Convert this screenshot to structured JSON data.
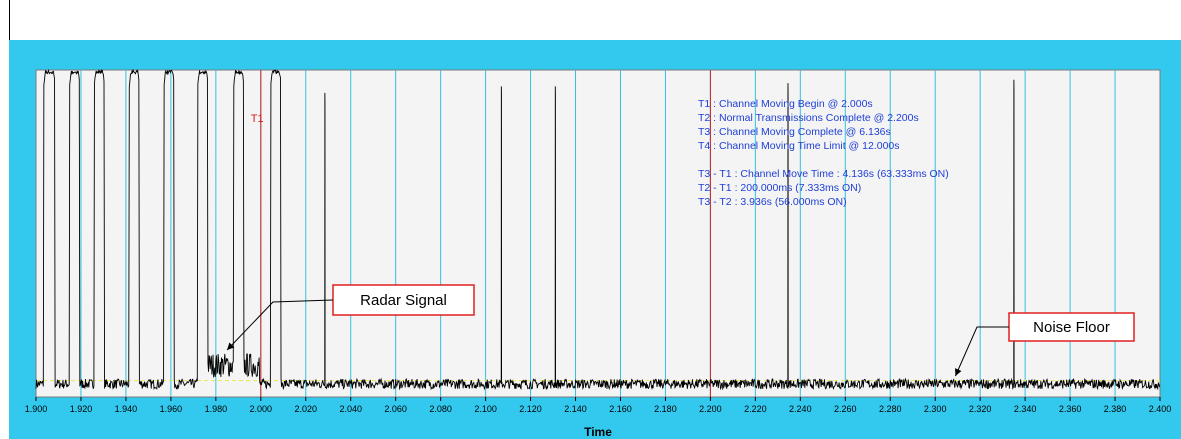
{
  "chart_data": {
    "type": "line",
    "title": "",
    "xlabel": "Time",
    "ylabel": "",
    "xlim": [
      1.9,
      2.4
    ],
    "ylim": [
      0,
      1
    ],
    "grid": true,
    "x_ticks": [
      "1.900",
      "1.920",
      "1.940",
      "1.960",
      "1.980",
      "2.000",
      "2.020",
      "2.040",
      "2.060",
      "2.080",
      "2.100",
      "2.120",
      "2.140",
      "2.160",
      "2.180",
      "2.200",
      "2.220",
      "2.240",
      "2.260",
      "2.280",
      "2.300",
      "2.320",
      "2.340",
      "2.360",
      "2.380",
      "2.400"
    ],
    "noise_floor_level": 0.04,
    "threshold_level": 0.05,
    "bursts": [
      {
        "start": 1.9035,
        "end": 1.9085,
        "level": 1.0
      },
      {
        "start": 1.915,
        "end": 1.9195,
        "level": 1.0
      },
      {
        "start": 1.926,
        "end": 1.9305,
        "level": 1.0
      },
      {
        "start": 1.9415,
        "end": 1.946,
        "level": 1.0
      },
      {
        "start": 1.957,
        "end": 1.9615,
        "level": 1.0
      },
      {
        "start": 1.972,
        "end": 1.9765,
        "level": 1.0
      },
      {
        "start": 1.988,
        "end": 1.9925,
        "level": 1.0
      },
      {
        "start": 2.0045,
        "end": 2.009,
        "level": 1.0
      }
    ],
    "spikes": [
      {
        "x": 2.0285,
        "level": 0.93
      },
      {
        "x": 2.107,
        "level": 0.95
      },
      {
        "x": 2.131,
        "level": 0.95
      },
      {
        "x": 2.2345,
        "level": 0.96
      },
      {
        "x": 2.335,
        "level": 0.97
      }
    ],
    "radar_region": [
      1.9765,
      1.9995
    ],
    "markers": [
      {
        "label": "T1",
        "x": 2.0
      },
      {
        "label": "T2",
        "x": 2.2
      }
    ],
    "annotations": [
      "T1 : Channel Moving Begin @ 2.000s",
      "T2 : Normal Transmissions Complete @ 2.200s",
      "T3 : Channel Moving Complete @ 6.136s",
      "T4 : Channel Moving Time Limit @ 12.000s",
      "",
      "T3 - T1 : Channel Move Time : 4.136s (63.333ms ON)",
      "T2 - T1 : 200.000ms (7.333ms ON)",
      "T3 - T2 : 3.936s (56.000ms ON)"
    ],
    "callouts": [
      {
        "label": "Radar Signal",
        "target_x": 1.985
      },
      {
        "label": "Noise Floor",
        "target_x": 2.309
      }
    ]
  },
  "colors": {
    "frame": "#33c9ee",
    "plot_bg": "#f4f4f4",
    "grid": "#35c0dd",
    "signal": "#000000",
    "marker": "#d42020",
    "annotation_text": "#1f3fd6",
    "threshold": "#e8e84a",
    "callout_border": "#e02020"
  }
}
